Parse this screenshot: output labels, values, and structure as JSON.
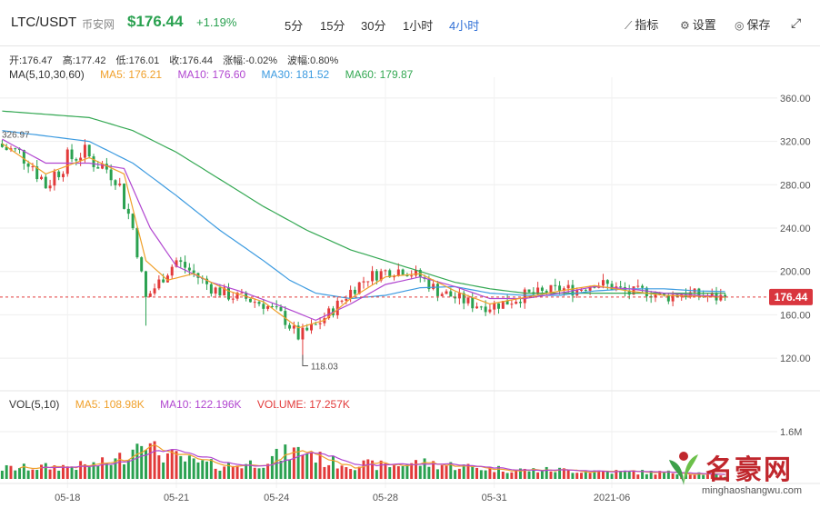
{
  "header": {
    "pair": "LTC/USDT",
    "exchange": "币安网",
    "price": "$176.44",
    "change": "+1.19%",
    "intervals": [
      {
        "label": "5分",
        "active": false
      },
      {
        "label": "15分",
        "active": false
      },
      {
        "label": "30分",
        "active": false
      },
      {
        "label": "1小时",
        "active": false
      },
      {
        "label": "4小时",
        "active": true
      }
    ],
    "tools": [
      {
        "label": "指标",
        "icon": "chart-line-icon"
      },
      {
        "label": "设置",
        "icon": "gear-icon"
      },
      {
        "label": "保存",
        "icon": "camera-icon"
      }
    ],
    "fullscreen_icon": "expand-icon"
  },
  "ohlc": {
    "open": "开:176.47",
    "high": "高:177.42",
    "low": "低:176.01",
    "close": "收:176.44",
    "amplitude": "涨幅:-0.02%",
    "volatility": "波幅:0.80%"
  },
  "ma_legend": {
    "label": "MA(5,10,30,60)",
    "ma5": "MA5: 176.21",
    "ma10": "MA10: 176.60",
    "ma30": "MA30: 181.52",
    "ma60": "MA60: 179.87"
  },
  "vol_legend": {
    "label": "VOL(5,10)",
    "ma5": "MA5: 108.98K",
    "ma10": "MA10: 122.196K",
    "volume": "VOLUME: 17.257K"
  },
  "colors": {
    "up": "#e23a3a",
    "down": "#2aa150",
    "ma5": "#f0a02a",
    "ma10": "#b146d0",
    "ma30": "#3b9ae0",
    "ma60": "#34a853",
    "accent": "#2f6fd6"
  },
  "watermark": {
    "title": "名豪网",
    "url": "minghaoshangwu.com"
  },
  "chart_data": {
    "type": "candlestick",
    "price_axis": {
      "ticks": [
        "360.00",
        "320.00",
        "280.00",
        "240.00",
        "200.00",
        "160.00",
        "120.00"
      ],
      "range": [
        100,
        375
      ]
    },
    "volume_axis": {
      "ticks": [
        "1.6M"
      ]
    },
    "x_ticks": [
      "05-18",
      "05-21",
      "05-24",
      "05-28",
      "05-31",
      "2021-06"
    ],
    "last_price_label": "176.44",
    "last_price": 176.44,
    "high_annotation": "326.97",
    "high_value": 326.97,
    "low_annotation": "118.03",
    "low_value": 118.03,
    "close_anchors": [
      [
        0,
        315
      ],
      [
        6,
        305
      ],
      [
        10,
        280
      ],
      [
        14,
        300
      ],
      [
        18,
        310
      ],
      [
        22,
        300
      ],
      [
        26,
        290
      ],
      [
        30,
        240
      ],
      [
        33,
        175
      ],
      [
        37,
        195
      ],
      [
        40,
        210
      ],
      [
        44,
        198
      ],
      [
        48,
        185
      ],
      [
        52,
        178
      ],
      [
        56,
        175
      ],
      [
        60,
        170
      ],
      [
        64,
        160
      ],
      [
        68,
        140
      ],
      [
        72,
        150
      ],
      [
        76,
        165
      ],
      [
        80,
        182
      ],
      [
        84,
        195
      ],
      [
        88,
        200
      ],
      [
        92,
        202
      ],
      [
        96,
        195
      ],
      [
        100,
        182
      ],
      [
        104,
        176
      ],
      [
        108,
        170
      ],
      [
        112,
        168
      ],
      [
        116,
        172
      ],
      [
        120,
        178
      ],
      [
        124,
        180
      ],
      [
        128,
        184
      ],
      [
        132,
        183
      ],
      [
        136,
        190
      ],
      [
        140,
        186
      ],
      [
        144,
        180
      ],
      [
        148,
        182
      ],
      [
        152,
        176
      ],
      [
        156,
        180
      ],
      [
        160,
        178
      ],
      [
        164,
        176
      ],
      [
        166,
        176.44
      ]
    ],
    "candle_count": 167,
    "ma5_anchors": [
      [
        0,
        318
      ],
      [
        10,
        290
      ],
      [
        20,
        305
      ],
      [
        28,
        290
      ],
      [
        33,
        210
      ],
      [
        38,
        192
      ],
      [
        44,
        198
      ],
      [
        52,
        182
      ],
      [
        60,
        172
      ],
      [
        68,
        148
      ],
      [
        74,
        155
      ],
      [
        80,
        175
      ],
      [
        88,
        195
      ],
      [
        96,
        198
      ],
      [
        104,
        182
      ],
      [
        112,
        170
      ],
      [
        120,
        176
      ],
      [
        128,
        182
      ],
      [
        136,
        187
      ],
      [
        144,
        182
      ],
      [
        152,
        178
      ],
      [
        160,
        177
      ],
      [
        166,
        176.21
      ]
    ],
    "ma10_anchors": [
      [
        0,
        322
      ],
      [
        10,
        300
      ],
      [
        20,
        300
      ],
      [
        28,
        295
      ],
      [
        34,
        240
      ],
      [
        40,
        205
      ],
      [
        48,
        190
      ],
      [
        56,
        180
      ],
      [
        64,
        168
      ],
      [
        72,
        155
      ],
      [
        80,
        170
      ],
      [
        88,
        188
      ],
      [
        96,
        195
      ],
      [
        104,
        186
      ],
      [
        112,
        175
      ],
      [
        120,
        175
      ],
      [
        128,
        180
      ],
      [
        136,
        186
      ],
      [
        144,
        184
      ],
      [
        152,
        180
      ],
      [
        160,
        178
      ],
      [
        166,
        176.6
      ]
    ],
    "ma30_anchors": [
      [
        0,
        330
      ],
      [
        20,
        320
      ],
      [
        30,
        300
      ],
      [
        40,
        270
      ],
      [
        50,
        238
      ],
      [
        60,
        210
      ],
      [
        66,
        192
      ],
      [
        72,
        180
      ],
      [
        80,
        175
      ],
      [
        88,
        178
      ],
      [
        96,
        185
      ],
      [
        104,
        186
      ],
      [
        112,
        180
      ],
      [
        120,
        178
      ],
      [
        128,
        178
      ],
      [
        136,
        182
      ],
      [
        144,
        184
      ],
      [
        152,
        184
      ],
      [
        160,
        182
      ],
      [
        166,
        181.52
      ]
    ],
    "ma60_anchors": [
      [
        0,
        348
      ],
      [
        20,
        342
      ],
      [
        30,
        330
      ],
      [
        40,
        310
      ],
      [
        50,
        285
      ],
      [
        60,
        260
      ],
      [
        70,
        238
      ],
      [
        80,
        220
      ],
      [
        88,
        210
      ],
      [
        96,
        200
      ],
      [
        104,
        190
      ],
      [
        112,
        184
      ],
      [
        120,
        180
      ],
      [
        128,
        180
      ],
      [
        136,
        180
      ],
      [
        144,
        180
      ],
      [
        152,
        180
      ],
      [
        160,
        180
      ],
      [
        166,
        179.87
      ]
    ],
    "volume_anchors": [
      [
        0,
        0.35
      ],
      [
        10,
        0.4
      ],
      [
        20,
        0.45
      ],
      [
        26,
        0.6
      ],
      [
        30,
        1.0
      ],
      [
        32,
        1.85
      ],
      [
        34,
        1.0
      ],
      [
        38,
        0.8
      ],
      [
        44,
        0.55
      ],
      [
        50,
        0.45
      ],
      [
        56,
        0.5
      ],
      [
        60,
        0.6
      ],
      [
        66,
        0.9
      ],
      [
        70,
        0.95
      ],
      [
        74,
        0.6
      ],
      [
        80,
        0.5
      ],
      [
        88,
        0.45
      ],
      [
        96,
        0.55
      ],
      [
        104,
        0.45
      ],
      [
        112,
        0.35
      ],
      [
        120,
        0.3
      ],
      [
        130,
        0.3
      ],
      [
        140,
        0.25
      ],
      [
        150,
        0.22
      ],
      [
        160,
        0.2
      ],
      [
        166,
        0.08
      ]
    ]
  }
}
